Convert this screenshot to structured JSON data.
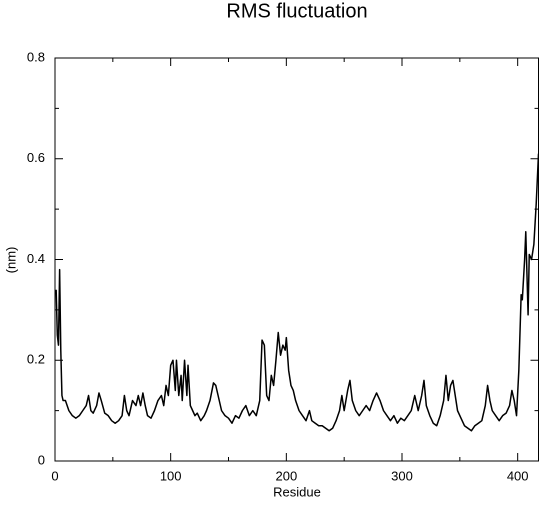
{
  "chart_data": {
    "type": "line",
    "title": "RMS fluctuation",
    "x_label": "Residue",
    "y_label": "(nm)",
    "color": "#000000",
    "xlim": [
      0,
      418
    ],
    "ylim": [
      0,
      0.8
    ],
    "xticks": [
      0,
      100,
      200,
      300,
      400
    ],
    "yticks": [
      0,
      0.2,
      0.4,
      0.6,
      0.8
    ],
    "xminorticks": [
      50,
      150,
      250,
      350
    ],
    "yminorticks": [
      0.1,
      0.3,
      0.5,
      0.7
    ],
    "x": [
      1,
      2,
      3,
      4,
      5,
      6,
      7,
      9,
      12,
      15,
      18,
      21,
      24,
      27,
      29,
      31,
      33,
      36,
      38,
      40,
      43,
      46,
      49,
      52,
      55,
      58,
      60,
      62,
      64,
      67,
      70,
      72,
      74,
      76,
      78,
      80,
      83,
      86,
      89,
      92,
      94,
      96,
      98,
      100,
      102,
      104,
      105,
      107,
      109,
      110,
      112,
      114,
      115,
      117,
      119,
      121,
      123,
      126,
      129,
      131,
      134,
      137,
      139,
      141,
      144,
      147,
      150,
      153,
      156,
      159,
      162,
      165,
      168,
      171,
      174,
      177,
      179,
      181,
      183,
      185,
      187,
      189,
      191,
      193,
      195,
      197,
      199,
      200,
      202,
      204,
      206,
      208,
      211,
      214,
      217,
      220,
      222,
      225,
      228,
      231,
      234,
      237,
      240,
      243,
      246,
      248,
      250,
      253,
      255,
      257,
      260,
      263,
      266,
      269,
      272,
      275,
      278,
      281,
      284,
      287,
      290,
      293,
      296,
      299,
      302,
      305,
      308,
      311,
      314,
      317,
      319,
      321,
      324,
      327,
      330,
      333,
      336,
      338,
      340,
      342,
      344,
      346,
      348,
      351,
      354,
      357,
      360,
      363,
      366,
      369,
      372,
      374,
      376,
      378,
      381,
      384,
      387,
      390,
      393,
      395,
      397,
      399,
      401,
      403,
      404,
      406,
      407,
      409,
      410,
      412,
      414,
      416,
      418
    ],
    "values": [
      0.34,
      0.25,
      0.23,
      0.38,
      0.22,
      0.13,
      0.12,
      0.12,
      0.1,
      0.09,
      0.085,
      0.09,
      0.1,
      0.11,
      0.13,
      0.1,
      0.095,
      0.11,
      0.135,
      0.12,
      0.095,
      0.09,
      0.08,
      0.075,
      0.08,
      0.09,
      0.13,
      0.1,
      0.09,
      0.12,
      0.11,
      0.13,
      0.11,
      0.135,
      0.11,
      0.09,
      0.085,
      0.1,
      0.12,
      0.13,
      0.11,
      0.15,
      0.13,
      0.19,
      0.2,
      0.14,
      0.2,
      0.13,
      0.17,
      0.12,
      0.2,
      0.13,
      0.19,
      0.11,
      0.1,
      0.09,
      0.095,
      0.08,
      0.09,
      0.1,
      0.12,
      0.155,
      0.15,
      0.13,
      0.1,
      0.09,
      0.085,
      0.075,
      0.09,
      0.085,
      0.1,
      0.11,
      0.09,
      0.1,
      0.09,
      0.12,
      0.24,
      0.23,
      0.13,
      0.12,
      0.17,
      0.15,
      0.2,
      0.255,
      0.21,
      0.23,
      0.22,
      0.245,
      0.18,
      0.15,
      0.14,
      0.12,
      0.1,
      0.09,
      0.08,
      0.1,
      0.08,
      0.075,
      0.07,
      0.07,
      0.065,
      0.06,
      0.065,
      0.08,
      0.1,
      0.13,
      0.1,
      0.14,
      0.16,
      0.12,
      0.1,
      0.09,
      0.1,
      0.11,
      0.1,
      0.12,
      0.135,
      0.12,
      0.1,
      0.09,
      0.08,
      0.09,
      0.075,
      0.085,
      0.08,
      0.09,
      0.1,
      0.13,
      0.1,
      0.13,
      0.16,
      0.11,
      0.09,
      0.075,
      0.07,
      0.09,
      0.12,
      0.17,
      0.12,
      0.15,
      0.16,
      0.13,
      0.1,
      0.085,
      0.07,
      0.065,
      0.06,
      0.07,
      0.075,
      0.08,
      0.11,
      0.15,
      0.12,
      0.1,
      0.09,
      0.08,
      0.09,
      0.095,
      0.11,
      0.14,
      0.12,
      0.09,
      0.18,
      0.33,
      0.32,
      0.4,
      0.455,
      0.29,
      0.41,
      0.4,
      0.43,
      0.51,
      0.61
    ]
  }
}
